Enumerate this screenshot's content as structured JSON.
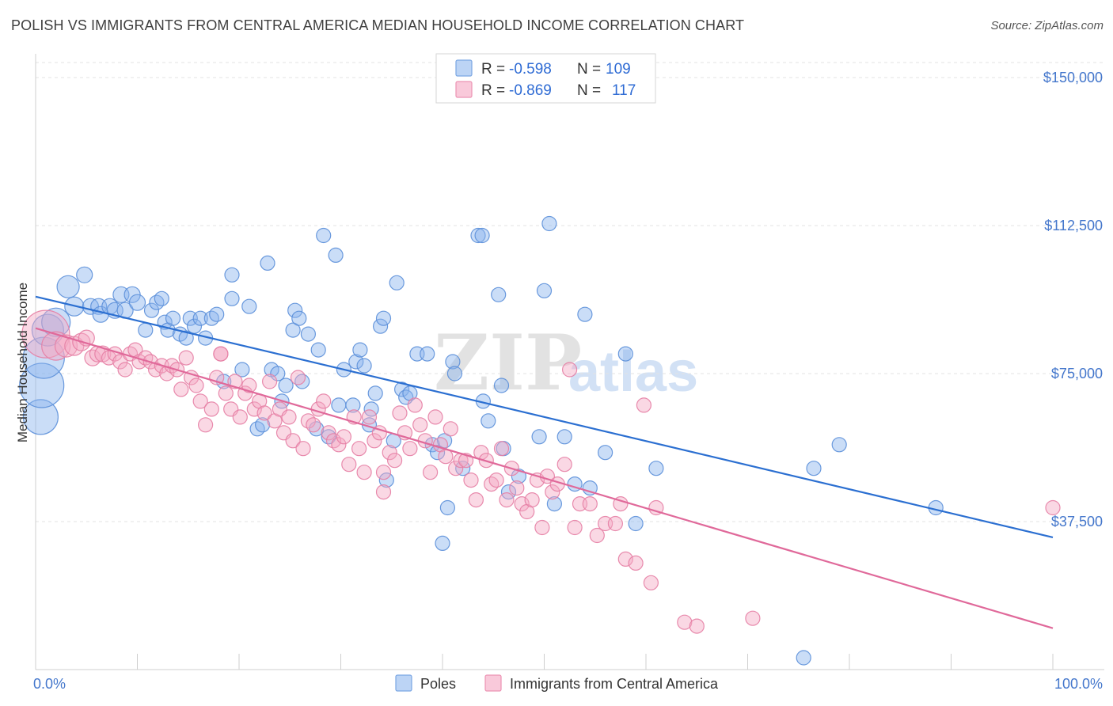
{
  "header": {
    "title": "POLISH VS IMMIGRANTS FROM CENTRAL AMERICA MEDIAN HOUSEHOLD INCOME CORRELATION CHART",
    "source": "Source: ZipAtlas.com"
  },
  "watermark": {
    "zip": "ZIP",
    "atlas": "atlas"
  },
  "legend_box": {
    "rows": [
      {
        "r_label": "R =",
        "r_value": "-0.598",
        "n_label": "N =",
        "n_value": "109"
      },
      {
        "r_label": "R =",
        "r_value": "-0.869",
        "n_label": "N =",
        "n_value": "117"
      }
    ]
  },
  "chart_data": {
    "type": "scatter",
    "ylabel": "Median Household Income",
    "xlim": [
      0,
      100
    ],
    "ylim": [
      0,
      150000
    ],
    "x_tick_labels": [
      "0.0%",
      "100.0%"
    ],
    "y_ticks": [
      {
        "value": 150000,
        "label": "$150,000"
      },
      {
        "value": 112500,
        "label": "$112,500"
      },
      {
        "value": 75000,
        "label": "$75,000"
      },
      {
        "value": 37500,
        "label": "$37,500"
      }
    ],
    "grid": true,
    "legend_placement": "top-center",
    "series": [
      {
        "name": "Poles",
        "color": "#8ab4ee",
        "stroke": "#5b8fd9",
        "line_color": "#2b6fd1",
        "trend": {
          "y_at_0": 94500,
          "y_at_100": 33500
        },
        "points": [
          [
            0.5,
            64000,
            22
          ],
          [
            0.6,
            72000,
            28
          ],
          [
            0.8,
            79000,
            26
          ],
          [
            1.2,
            86000,
            20
          ],
          [
            2.0,
            88000,
            18
          ],
          [
            3.2,
            97000,
            14
          ],
          [
            3.8,
            92000,
            12
          ],
          [
            4.8,
            100000,
            10
          ],
          [
            5.4,
            92000,
            10
          ],
          [
            6.2,
            92000,
            10
          ],
          [
            6.4,
            90000,
            10
          ],
          [
            7.3,
            92000,
            10
          ],
          [
            7.8,
            91000,
            10
          ],
          [
            8.4,
            95000,
            10
          ],
          [
            8.8,
            91000,
            10
          ],
          [
            9.5,
            95000,
            10
          ],
          [
            10.0,
            93000,
            10
          ],
          [
            10.8,
            86000,
            9
          ],
          [
            11.4,
            91000,
            9
          ],
          [
            11.9,
            93000,
            9
          ],
          [
            12.4,
            94000,
            9
          ],
          [
            12.7,
            88000,
            9
          ],
          [
            13.0,
            86000,
            9
          ],
          [
            13.5,
            89000,
            9
          ],
          [
            14.2,
            85000,
            9
          ],
          [
            14.8,
            84000,
            9
          ],
          [
            15.2,
            89000,
            9
          ],
          [
            15.6,
            87000,
            9
          ],
          [
            16.2,
            89000,
            9
          ],
          [
            16.7,
            84000,
            9
          ],
          [
            17.3,
            89000,
            9
          ],
          [
            17.8,
            90000,
            9
          ],
          [
            18.5,
            73000,
            9
          ],
          [
            19.3,
            94000,
            9
          ],
          [
            19.3,
            100000,
            9
          ],
          [
            20.3,
            76000,
            9
          ],
          [
            21.0,
            92000,
            9
          ],
          [
            21.8,
            61000,
            9
          ],
          [
            22.3,
            62000,
            9
          ],
          [
            22.8,
            103000,
            9
          ],
          [
            23.2,
            76000,
            9
          ],
          [
            23.8,
            75000,
            9
          ],
          [
            24.2,
            68000,
            9
          ],
          [
            24.6,
            72000,
            9
          ],
          [
            25.3,
            86000,
            9
          ],
          [
            25.5,
            91000,
            9
          ],
          [
            25.9,
            89000,
            9
          ],
          [
            26.2,
            73000,
            9
          ],
          [
            26.8,
            85000,
            9
          ],
          [
            27.6,
            61000,
            9
          ],
          [
            27.8,
            81000,
            9
          ],
          [
            28.3,
            110000,
            9
          ],
          [
            28.8,
            59000,
            9
          ],
          [
            29.5,
            105000,
            9
          ],
          [
            29.8,
            67000,
            9
          ],
          [
            30.3,
            76000,
            9
          ],
          [
            31.2,
            67000,
            9
          ],
          [
            31.5,
            78000,
            9
          ],
          [
            31.9,
            81000,
            9
          ],
          [
            32.3,
            77000,
            9
          ],
          [
            32.8,
            62000,
            9
          ],
          [
            33.0,
            66000,
            9
          ],
          [
            33.4,
            70000,
            9
          ],
          [
            33.9,
            87000,
            9
          ],
          [
            34.2,
            89000,
            9
          ],
          [
            34.5,
            48000,
            9
          ],
          [
            35.2,
            58000,
            9
          ],
          [
            35.5,
            98000,
            9
          ],
          [
            36.0,
            71000,
            9
          ],
          [
            36.4,
            69000,
            9
          ],
          [
            36.8,
            70000,
            9
          ],
          [
            37.5,
            80000,
            9
          ],
          [
            38.5,
            80000,
            9
          ],
          [
            39.0,
            57000,
            9
          ],
          [
            39.5,
            55000,
            9
          ],
          [
            40.2,
            58000,
            9
          ],
          [
            40.5,
            41000,
            9
          ],
          [
            40.0,
            32000,
            9
          ],
          [
            41.0,
            78000,
            9
          ],
          [
            41.2,
            75000,
            9
          ],
          [
            42.0,
            51000,
            9
          ],
          [
            43.5,
            110000,
            9
          ],
          [
            43.9,
            110000,
            9
          ],
          [
            44.0,
            68000,
            9
          ],
          [
            44.5,
            63000,
            9
          ],
          [
            45.5,
            95000,
            9
          ],
          [
            45.8,
            72000,
            9
          ],
          [
            46.0,
            56000,
            9
          ],
          [
            46.5,
            45000,
            9
          ],
          [
            47.5,
            49000,
            9
          ],
          [
            49.5,
            59000,
            9
          ],
          [
            50.0,
            96000,
            9
          ],
          [
            50.5,
            113000,
            9
          ],
          [
            51.0,
            42000,
            9
          ],
          [
            52.0,
            59000,
            9
          ],
          [
            53.0,
            47000,
            9
          ],
          [
            54.0,
            90000,
            9
          ],
          [
            54.5,
            46000,
            9
          ],
          [
            56.0,
            55000,
            9
          ],
          [
            58.0,
            80000,
            9
          ],
          [
            59.0,
            37000,
            9
          ],
          [
            61.0,
            51000,
            9
          ],
          [
            76.5,
            51000,
            9
          ],
          [
            79.0,
            57000,
            9
          ],
          [
            88.5,
            41000,
            9
          ],
          [
            75.5,
            3000,
            9
          ]
        ]
      },
      {
        "name": "Immigrants from Central America",
        "color": "#f5a8c4",
        "stroke": "#e67ea4",
        "line_color": "#e0699a",
        "trend": {
          "y_at_0": 86500,
          "y_at_100": 10500
        },
        "points": [
          [
            1.0,
            85000,
            30
          ],
          [
            2.0,
            82000,
            18
          ],
          [
            3.0,
            82000,
            14
          ],
          [
            3.8,
            82000,
            12
          ],
          [
            4.5,
            83000,
            11
          ],
          [
            5.0,
            84000,
            10
          ],
          [
            5.6,
            79000,
            10
          ],
          [
            6.1,
            80000,
            10
          ],
          [
            6.6,
            80000,
            10
          ],
          [
            7.2,
            79000,
            9
          ],
          [
            7.8,
            80000,
            9
          ],
          [
            8.3,
            78000,
            9
          ],
          [
            8.8,
            76000,
            9
          ],
          [
            9.3,
            80000,
            9
          ],
          [
            9.8,
            81000,
            9
          ],
          [
            10.2,
            78000,
            9
          ],
          [
            10.8,
            79000,
            9
          ],
          [
            11.3,
            78000,
            9
          ],
          [
            11.8,
            76000,
            9
          ],
          [
            12.4,
            77000,
            9
          ],
          [
            12.9,
            75000,
            9
          ],
          [
            13.4,
            77000,
            9
          ],
          [
            13.9,
            76000,
            9
          ],
          [
            14.3,
            71000,
            9
          ],
          [
            14.8,
            79000,
            9
          ],
          [
            15.3,
            74000,
            9
          ],
          [
            15.8,
            72000,
            9
          ],
          [
            16.2,
            68000,
            9
          ],
          [
            16.7,
            62000,
            9
          ],
          [
            17.3,
            66000,
            9
          ],
          [
            17.8,
            74000,
            9
          ],
          [
            18.2,
            80000,
            9
          ],
          [
            18.7,
            70000,
            9
          ],
          [
            19.2,
            66000,
            9
          ],
          [
            19.6,
            73000,
            9
          ],
          [
            20.1,
            64000,
            9
          ],
          [
            20.6,
            70000,
            9
          ],
          [
            21.0,
            72000,
            9
          ],
          [
            21.5,
            66000,
            9
          ],
          [
            22.0,
            68000,
            9
          ],
          [
            22.5,
            65000,
            9
          ],
          [
            23.0,
            73000,
            9
          ],
          [
            23.5,
            63000,
            9
          ],
          [
            24.0,
            66000,
            9
          ],
          [
            24.4,
            60000,
            9
          ],
          [
            24.9,
            64000,
            9
          ],
          [
            25.3,
            58000,
            9
          ],
          [
            25.8,
            74000,
            9
          ],
          [
            26.3,
            56000,
            9
          ],
          [
            26.8,
            63000,
            9
          ],
          [
            27.3,
            62000,
            9
          ],
          [
            27.8,
            66000,
            9
          ],
          [
            28.3,
            68000,
            9
          ],
          [
            28.8,
            60000,
            9
          ],
          [
            29.3,
            58000,
            9
          ],
          [
            29.8,
            57000,
            9
          ],
          [
            30.3,
            59000,
            9
          ],
          [
            30.8,
            52000,
            9
          ],
          [
            31.3,
            64000,
            9
          ],
          [
            31.8,
            56000,
            9
          ],
          [
            32.3,
            50000,
            9
          ],
          [
            32.8,
            64000,
            9
          ],
          [
            33.3,
            58000,
            9
          ],
          [
            33.8,
            60000,
            9
          ],
          [
            34.2,
            50000,
            9
          ],
          [
            34.8,
            55000,
            9
          ],
          [
            35.3,
            53000,
            9
          ],
          [
            35.8,
            65000,
            9
          ],
          [
            36.3,
            60000,
            9
          ],
          [
            36.8,
            56000,
            9
          ],
          [
            37.3,
            67000,
            9
          ],
          [
            37.8,
            62000,
            9
          ],
          [
            38.3,
            58000,
            9
          ],
          [
            38.8,
            50000,
            9
          ],
          [
            39.3,
            64000,
            9
          ],
          [
            39.8,
            57000,
            9
          ],
          [
            40.3,
            54000,
            9
          ],
          [
            40.8,
            61000,
            9
          ],
          [
            41.3,
            51000,
            9
          ],
          [
            41.8,
            53000,
            9
          ],
          [
            42.3,
            53000,
            9
          ],
          [
            42.8,
            48000,
            9
          ],
          [
            43.3,
            43000,
            9
          ],
          [
            43.8,
            55000,
            9
          ],
          [
            44.3,
            53000,
            9
          ],
          [
            44.8,
            47000,
            9
          ],
          [
            45.3,
            48000,
            9
          ],
          [
            45.8,
            56000,
            9
          ],
          [
            46.3,
            43000,
            9
          ],
          [
            46.8,
            51000,
            9
          ],
          [
            47.3,
            46000,
            9
          ],
          [
            47.8,
            42000,
            9
          ],
          [
            48.3,
            40000,
            9
          ],
          [
            48.8,
            43000,
            9
          ],
          [
            49.3,
            48000,
            9
          ],
          [
            49.8,
            36000,
            9
          ],
          [
            50.3,
            49000,
            9
          ],
          [
            50.8,
            45000,
            9
          ],
          [
            51.3,
            47000,
            9
          ],
          [
            52.0,
            52000,
            9
          ],
          [
            52.5,
            76000,
            9
          ],
          [
            53.0,
            36000,
            9
          ],
          [
            53.5,
            42000,
            9
          ],
          [
            54.5,
            42000,
            9
          ],
          [
            55.2,
            34000,
            9
          ],
          [
            56.0,
            37000,
            9
          ],
          [
            57.0,
            37000,
            9
          ],
          [
            57.5,
            42000,
            9
          ],
          [
            58.0,
            28000,
            9
          ],
          [
            59.0,
            27000,
            9
          ],
          [
            59.8,
            67000,
            9
          ],
          [
            60.5,
            22000,
            9
          ],
          [
            61.0,
            41000,
            9
          ],
          [
            63.8,
            12000,
            9
          ],
          [
            65.0,
            11000,
            9
          ],
          [
            70.5,
            13000,
            9
          ],
          [
            100.0,
            41000,
            9
          ],
          [
            34.2,
            45000,
            9
          ],
          [
            18.2,
            80000,
            9
          ]
        ]
      }
    ]
  }
}
